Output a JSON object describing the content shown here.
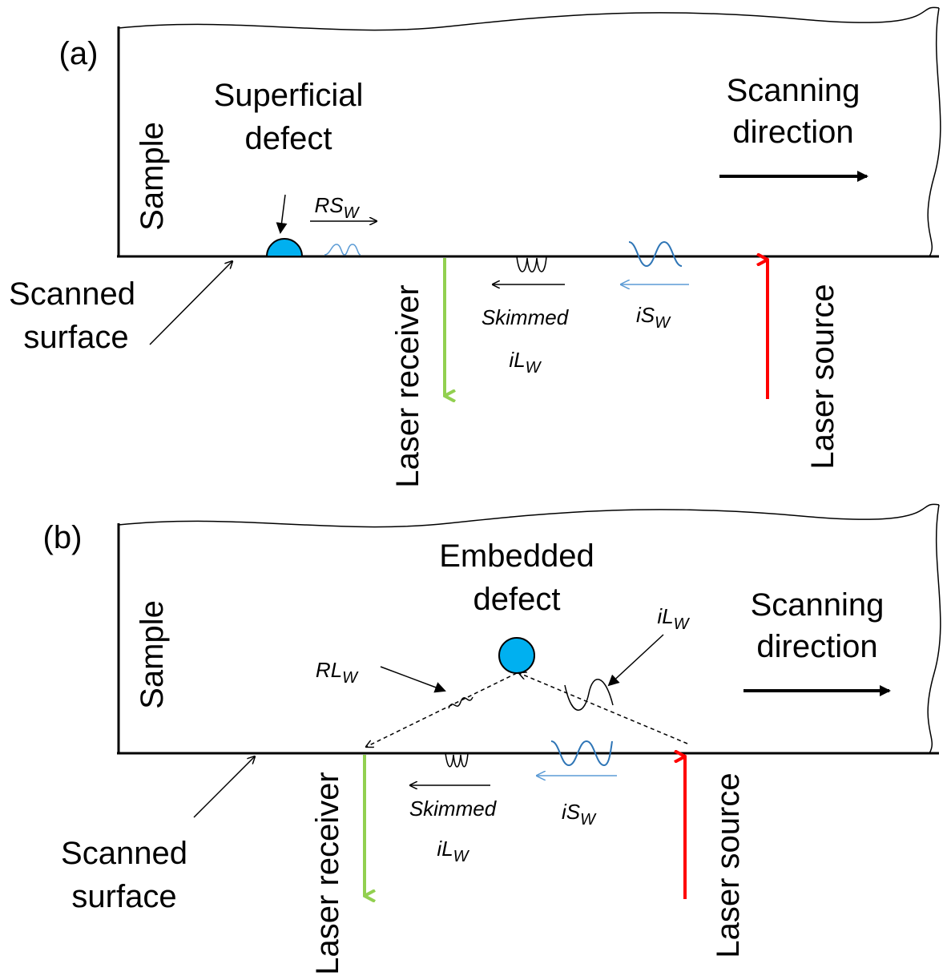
{
  "panels": [
    {
      "label": "(a)",
      "sample": "Sample",
      "defect": [
        "Superficial",
        "defect"
      ],
      "scanning": [
        "Scanning",
        "direction"
      ],
      "surface": [
        "Scanned",
        "surface"
      ],
      "receiver": "Laser receiver",
      "source": "Laser source",
      "skimmed": {
        "text": "Skimmed",
        "symbol": "iL",
        "sub": "W"
      },
      "incident": {
        "symbol": "iS",
        "sub": "W"
      },
      "reflected": {
        "symbol": "RS",
        "sub": "W"
      }
    },
    {
      "label": "(b)",
      "sample": "Sample",
      "defect": [
        "Embedded",
        "defect"
      ],
      "scanning": [
        "Scanning",
        "direction"
      ],
      "surface": [
        "Scanned",
        "surface"
      ],
      "receiver": "Laser receiver",
      "source": "Laser source",
      "skimmed": {
        "text": "Skimmed",
        "symbol": "iL",
        "sub": "W"
      },
      "incident": {
        "symbol": "iS",
        "sub": "W"
      },
      "reflected": {
        "symbol": "RL",
        "sub": "W"
      },
      "longitudinal": {
        "symbol": "iL",
        "sub": "W"
      }
    }
  ]
}
